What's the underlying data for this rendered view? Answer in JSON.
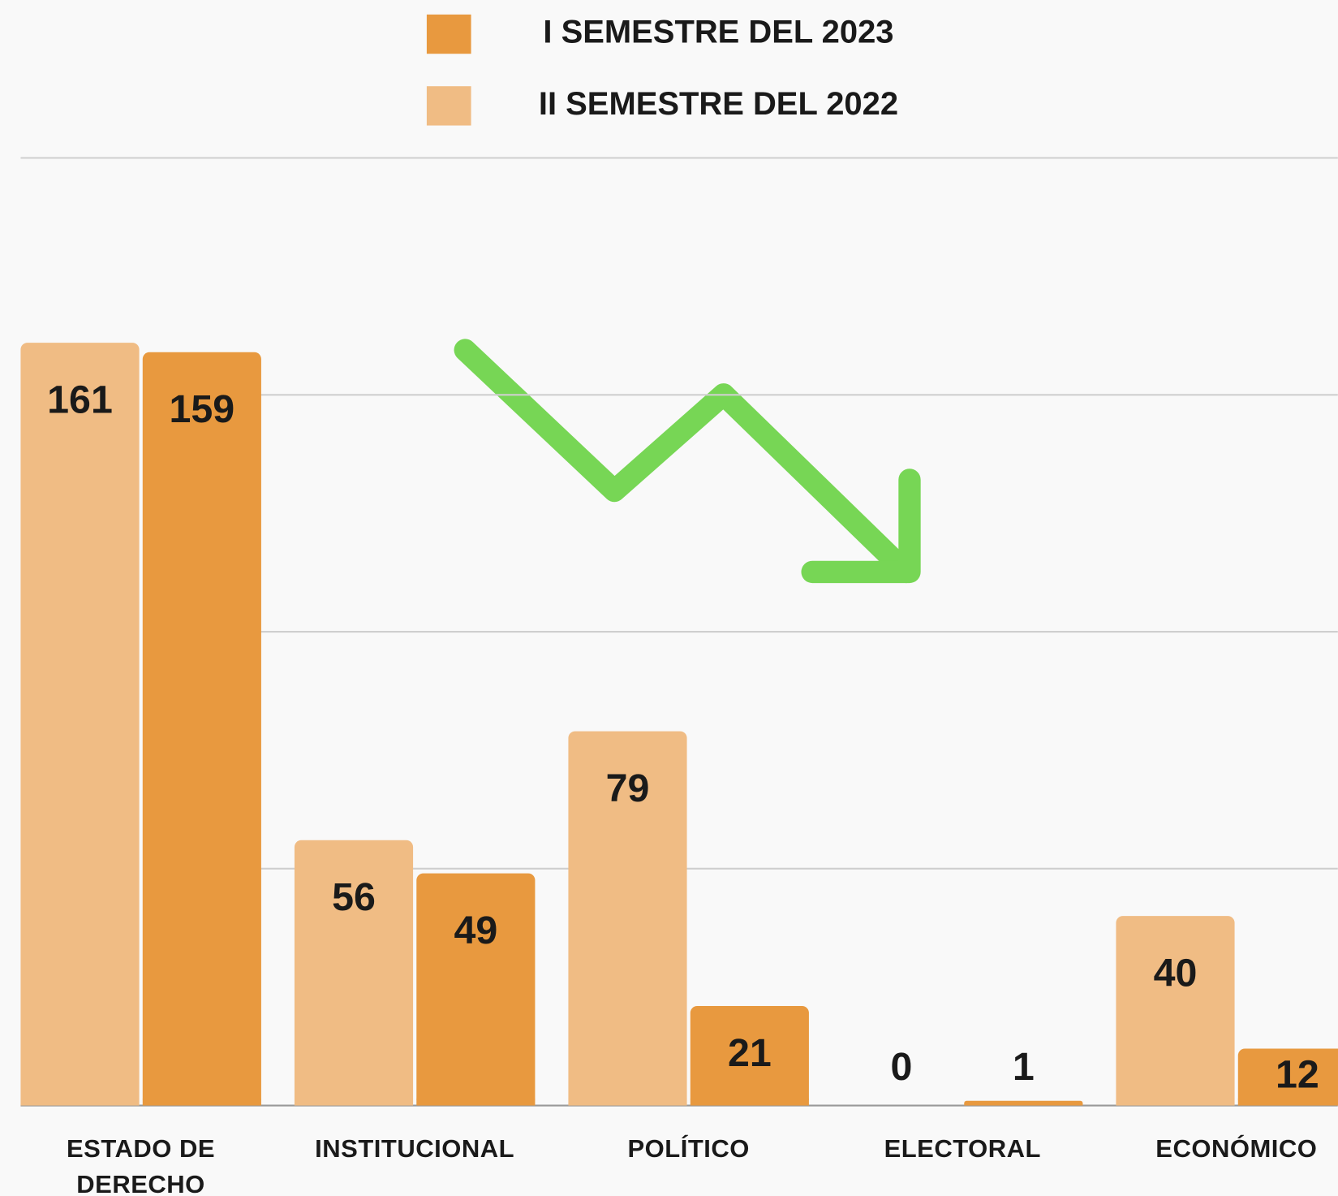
{
  "chart_data": {
    "type": "bar",
    "categories": [
      "ESTADO DE DERECHO",
      "INSTITUCIONAL",
      "POLÍTICO",
      "ELECTORAL",
      "ECONÓMICO"
    ],
    "series": [
      {
        "name": "I SEMESTRE DEL 2023",
        "color": "#e8993f",
        "values": [
          159,
          49,
          21,
          1,
          12
        ]
      },
      {
        "name": "II SEMESTRE DEL 2022",
        "color": "#f0bc84",
        "values": [
          161,
          56,
          79,
          0,
          40
        ]
      }
    ],
    "ylim": [
      0,
      200
    ],
    "yticks": [
      0,
      50,
      100,
      150,
      200
    ],
    "grid": true
  }
}
